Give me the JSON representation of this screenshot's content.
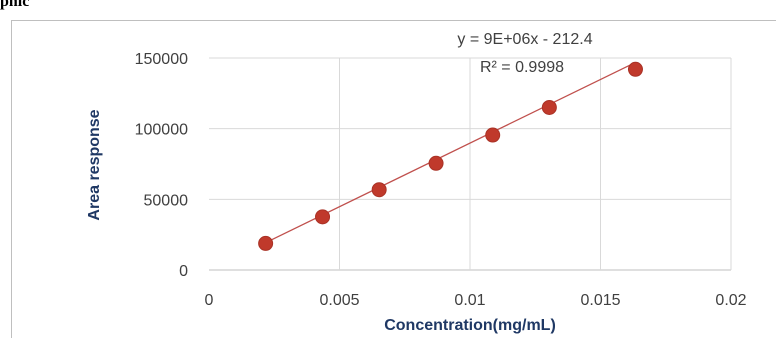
{
  "page": {
    "top_text": "phic"
  },
  "chart_data": {
    "type": "scatter",
    "xlabel": "Concentration(mg/mL)",
    "ylabel": "Area response",
    "xlim": [
      0,
      0.02
    ],
    "ylim": [
      0,
      150000
    ],
    "x_ticks": [
      "0",
      "0.005",
      "0.01",
      "0.015",
      "0.02"
    ],
    "x_tick_values": [
      0,
      0.005,
      0.01,
      0.015,
      0.02
    ],
    "y_ticks": [
      "0",
      "50000",
      "100000",
      "150000"
    ],
    "y_tick_values": [
      0,
      50000,
      100000,
      150000
    ],
    "grid": true,
    "series": [
      {
        "x": [
          0.00217,
          0.00435,
          0.00652,
          0.0087,
          0.01087,
          0.01304,
          0.01634
        ],
        "y": [
          18800,
          37600,
          56800,
          75500,
          95500,
          115000,
          142000
        ]
      }
    ],
    "trendline": {
      "slope": 9000000,
      "intercept": -212.4
    },
    "annotations": {
      "equation": "y = 9E+06x - 212.4",
      "r_squared": "R² = 0.9998"
    },
    "colors": {
      "marker": "#c0392b",
      "marker_edge": "#a93226",
      "trendline": "#c0504d",
      "grid": "#d9d9d9",
      "axis_title": "#1f3864"
    }
  }
}
